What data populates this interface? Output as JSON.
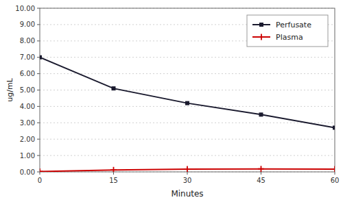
{
  "chart_data": {
    "type": "line",
    "xlabel": "Minutes",
    "ylabel": "ug/mL",
    "x": [
      0,
      15,
      30,
      45,
      60
    ],
    "series": [
      {
        "name": "Perfusate",
        "color": "#1a1a2e",
        "marker": "square",
        "values": [
          7.0,
          5.1,
          4.2,
          3.5,
          2.7
        ]
      },
      {
        "name": "Plasma",
        "color": "#cc0000",
        "marker": "plus",
        "values": [
          0.02,
          0.12,
          0.17,
          0.18,
          0.17
        ]
      }
    ],
    "xlim": [
      0,
      60
    ],
    "ylim": [
      0.0,
      10.0
    ],
    "xticks": [
      0,
      15,
      30,
      45,
      60
    ],
    "yticks": [
      {
        "value": 0,
        "label": "0.00"
      },
      {
        "value": 1,
        "label": "1.00"
      },
      {
        "value": 2,
        "label": "2.00"
      },
      {
        "value": 3,
        "label": "3.00"
      },
      {
        "value": 4,
        "label": "4.00"
      },
      {
        "value": 5,
        "label": "5.00"
      },
      {
        "value": 6,
        "label": "6.00"
      },
      {
        "value": 7,
        "label": "7.00"
      },
      {
        "value": 8,
        "label": "8.00"
      },
      {
        "value": 9,
        "label": "9.00"
      },
      {
        "value": 10,
        "label": "10.00"
      }
    ],
    "grid": "y",
    "legend": "upper right"
  }
}
